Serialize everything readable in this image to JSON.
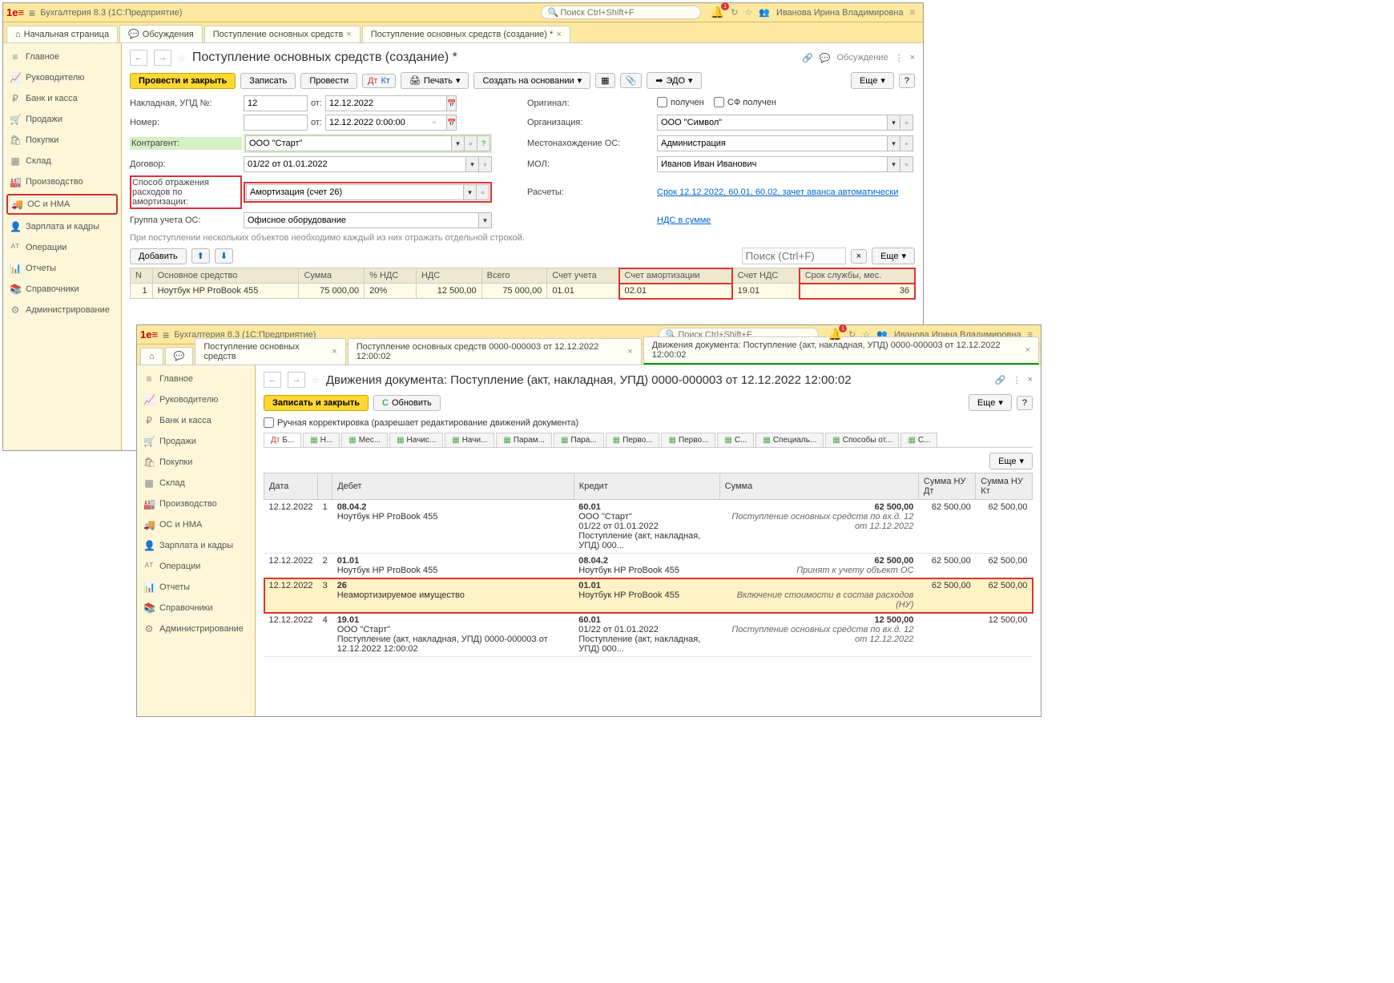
{
  "app": {
    "title": "Бухгалтерия 8.3  (1С:Предприятие)",
    "search_placeholder": "Поиск Ctrl+Shift+F",
    "user": "Иванова Ирина Владимировна"
  },
  "tabs1": {
    "home": "Начальная страница",
    "discuss": "Обсуждения",
    "t1": "Поступление основных средств",
    "t2": "Поступление основных средств (создание) *"
  },
  "sidebar": [
    {
      "icon": "≡",
      "label": "Главное"
    },
    {
      "icon": "📈",
      "label": "Руководителю"
    },
    {
      "icon": "₽",
      "label": "Банк и касса"
    },
    {
      "icon": "🛒",
      "label": "Продажи"
    },
    {
      "icon": "🛍",
      "label": "Покупки"
    },
    {
      "icon": "▦",
      "label": "Склад"
    },
    {
      "icon": "🏭",
      "label": "Производство"
    },
    {
      "icon": "🚚",
      "label": "ОС и НМА"
    },
    {
      "icon": "👤",
      "label": "Зарплата и кадры"
    },
    {
      "icon": "ᴬᵀ",
      "label": "Операции"
    },
    {
      "icon": "📊",
      "label": "Отчеты"
    },
    {
      "icon": "📚",
      "label": "Справочники"
    },
    {
      "icon": "⚙",
      "label": "Администрирование"
    }
  ],
  "doc": {
    "title": "Поступление основных средств (создание) *",
    "discuss": "Обсуждение",
    "buttons": {
      "post_close": "Провести и закрыть",
      "save": "Записать",
      "post": "Провести",
      "print": "Печать",
      "create_based": "Создать на основании",
      "edo": "ЭДО",
      "more": "Еще"
    },
    "form": {
      "invoice_lbl": "Накладная, УПД №:",
      "invoice_no": "12",
      "from": "от:",
      "invoice_date": "12.12.2022",
      "number_lbl": "Номер:",
      "number_date": "12.12.2022 0:00:00",
      "original_lbl": "Оригинал:",
      "received": "получен",
      "sf": "СФ получен",
      "org_lbl": "Организация:",
      "org": "ООО \"Символ\"",
      "contr_lbl": "Контрагент:",
      "contr": "ООО \"Старт\"",
      "loc_lbl": "Местонахождение ОС:",
      "loc": "Администрация",
      "dog_lbl": "Договор:",
      "dog": "01/22 от 01.01.2022",
      "mol_lbl": "МОЛ:",
      "mol": "Иванов Иван Иванович",
      "amort_lbl": "Способ отражения расходов по амортизации:",
      "amort": "Амортизация (счет 26)",
      "calc_lbl": "Расчеты:",
      "calc_link": "Срок 12.12.2022, 60.01, 60.02, зачет аванса автоматически",
      "group_lbl": "Группа учета ОС:",
      "group": "Офисное оборудование",
      "nds_link": "НДС в сумме",
      "note": "При поступлении нескольких объектов необходимо каждый из них отражать отдельной строкой.",
      "add": "Добавить",
      "search_ph": "Поиск (Ctrl+F)"
    },
    "table": {
      "cols": [
        "N",
        "Основное средство",
        "Сумма",
        "% НДС",
        "НДС",
        "Всего",
        "Счет учета",
        "Счет амортизации",
        "Счет НДС",
        "Срок службы, мес."
      ],
      "row": [
        "1",
        "Ноутбук HP ProBook 455",
        "75 000,00",
        "20%",
        "12 500,00",
        "75 000,00",
        "01.01",
        "02.01",
        "19.01",
        "36"
      ]
    }
  },
  "w2": {
    "tabs": {
      "home": "⌂",
      "discuss": "💬",
      "t1": "Поступление основных средств",
      "t2": "Поступление основных средств 0000-000003 от 12.12.2022 12:00:02",
      "t3": "Движения документа: Поступление (акт, накладная, УПД) 0000-000003 от 12.12.2022 12:00:02"
    },
    "title": "Движения документа: Поступление (акт, накладная, УПД) 0000-000003 от 12.12.2022 12:00:02",
    "save_close": "Записать и закрыть",
    "refresh": "Обновить",
    "more": "Еще",
    "manual": "Ручная корректировка (разрешает редактирование движений документа)",
    "tabs2": [
      "Б...",
      "Н...",
      "Мес...",
      "Начис...",
      "Начи...",
      "Парам...",
      "Пара...",
      "Перво...",
      "Перво...",
      "С...",
      "Специаль...",
      "Способы от...",
      "С..."
    ],
    "cols": [
      "Дата",
      "",
      "Дебет",
      "Кредит",
      "Сумма",
      "Сумма НУ Дт",
      "Сумма НУ Кт"
    ],
    "rows": [
      {
        "date": "12.12.2022",
        "n": "1",
        "dt": "08.04.2",
        "dt2": "Ноутбук HP ProBook 455",
        "kt": "60.01",
        "kt2": "ООО \"Старт\"",
        "kt3": "01/22 от 01.01.2022",
        "kt4": "Поступление (акт, накладная, УПД) 000...",
        "sum": "62 500,00",
        "nudt": "62 500,00",
        "nukt": "62 500,00",
        "op": "Поступление основных средств по вх.д. 12 от 12.12.2022"
      },
      {
        "date": "12.12.2022",
        "n": "2",
        "dt": "01.01",
        "dt2": "Ноутбук HP ProBook 455",
        "kt": "08.04.2",
        "kt2": "Ноутбук HP ProBook 455",
        "sum": "62 500,00",
        "nudt": "62 500,00",
        "nukt": "62 500,00",
        "op": "Принят к учету объект ОС"
      },
      {
        "date": "12.12.2022",
        "n": "3",
        "dt": "26",
        "dt2": "Неамортизируемое имущество",
        "kt": "01.01",
        "kt2": "Ноутбук HP ProBook 455",
        "sum": "",
        "nudt": "62 500,00",
        "nukt": "62 500,00",
        "op": "Включение стоимости в состав расходов (НУ)",
        "hl": true
      },
      {
        "date": "12.12.2022",
        "n": "4",
        "dt": "19.01",
        "dt2": "ООО \"Старт\"",
        "dt3": "Поступление (акт, накладная, УПД) 0000-000003 от 12.12.2022 12:00:02",
        "kt": "60.01",
        "kt2": "01/22 от 01.01.2022",
        "kt3": "Поступление (акт, накладная, УПД) 000...",
        "sum": "12 500,00",
        "nudt": "",
        "nukt": "12 500,00",
        "op": "Поступление основных средств по вх.д. 12 от 12.12.2022"
      }
    ]
  }
}
